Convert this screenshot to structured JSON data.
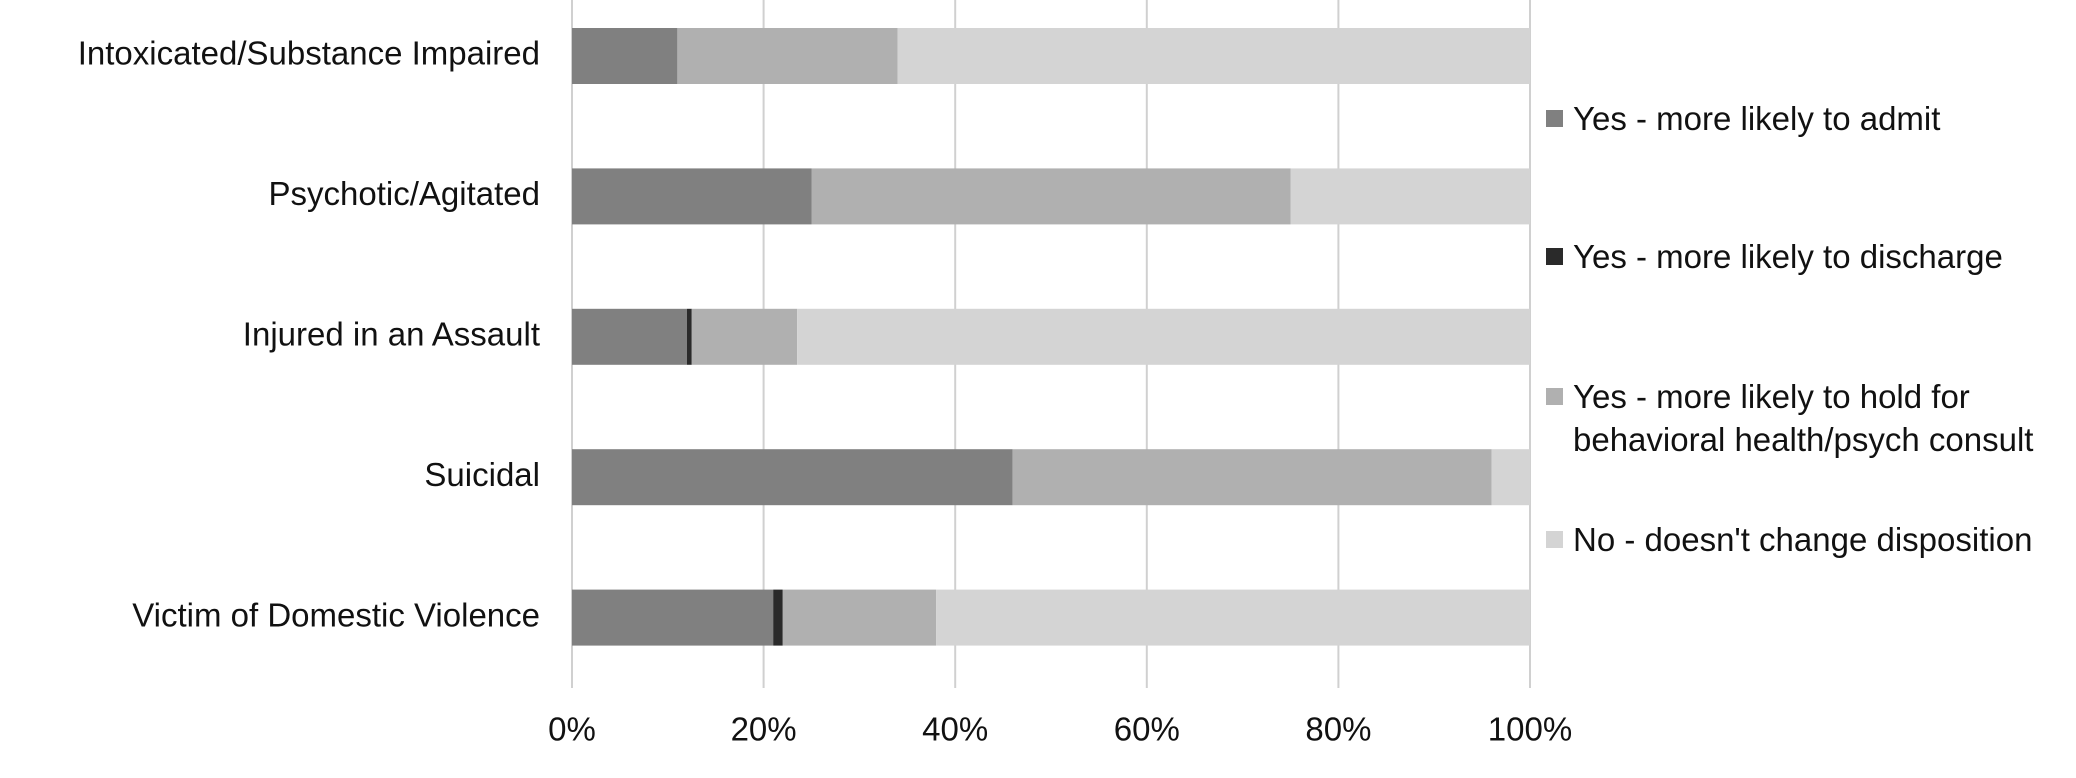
{
  "chart_data": {
    "type": "stacked-barh",
    "categories": [
      "Intoxicated/Substance Impaired",
      "Psychotic/Agitated",
      "Injured in an Assault",
      "Suicidal",
      "Victim of Domestic Violence"
    ],
    "series": [
      {
        "name": "Yes - more likely to admit",
        "color": "#808080",
        "values": [
          11,
          25,
          12,
          46,
          21
        ]
      },
      {
        "name": "Yes - more likely to discharge",
        "color": "#2a2a2a",
        "values": [
          0,
          0,
          0.5,
          0,
          1
        ]
      },
      {
        "name": "Yes - more likely to hold for behavioral health/psych consult",
        "color": "#b0b0b0",
        "values": [
          23,
          50,
          11,
          50,
          16
        ]
      },
      {
        "name": "No - doesn't change disposition",
        "color": "#d4d4d4",
        "values": [
          66,
          25,
          76.5,
          4,
          62
        ]
      }
    ],
    "xlim": [
      0,
      100
    ],
    "xticks": [
      {
        "value": 0,
        "label": "0%"
      },
      {
        "value": 20,
        "label": "20%"
      },
      {
        "value": 40,
        "label": "40%"
      },
      {
        "value": 60,
        "label": "60%"
      },
      {
        "value": 80,
        "label": "80%"
      },
      {
        "value": 100,
        "label": "100%"
      }
    ],
    "grid": true,
    "legend": "right"
  }
}
